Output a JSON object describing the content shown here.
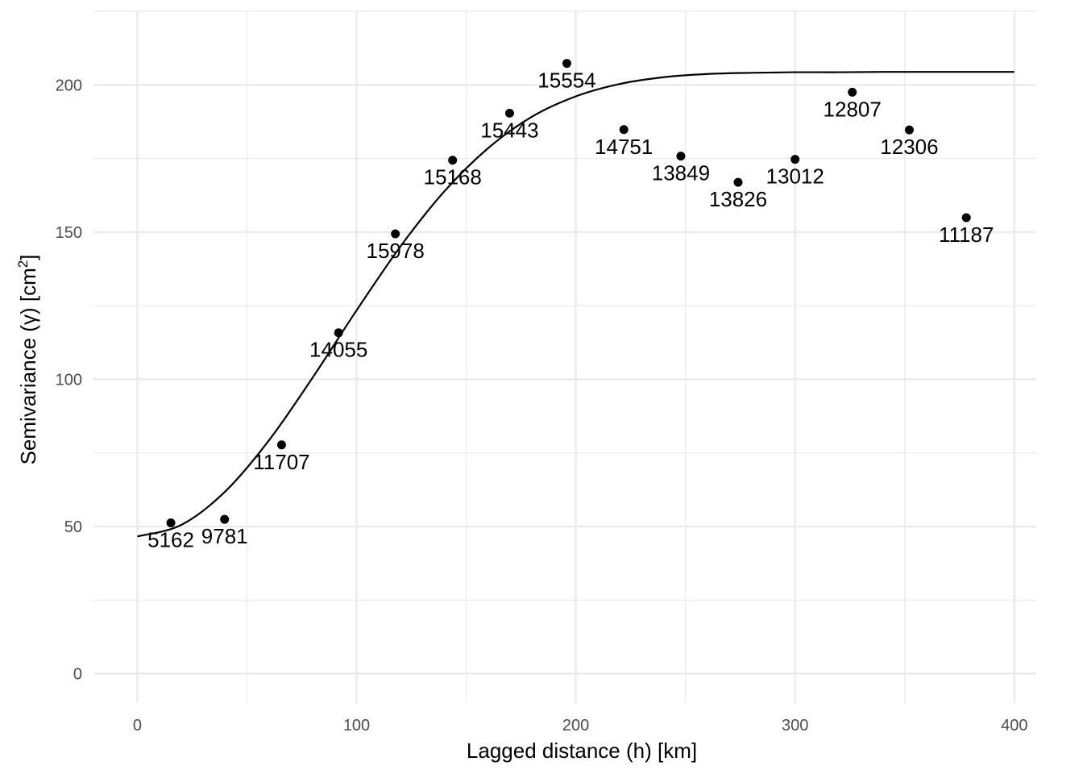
{
  "chart_data": {
    "type": "scatter",
    "xlabel": "Lagged distance (h) [km]",
    "ylabel": "Semivariance (γ) [cm²]",
    "ylabel_parts": {
      "main": "Semivariance (γ) [cm",
      "superscript": "2",
      "close": "]"
    },
    "xlim": [
      -20,
      410
    ],
    "ylim": [
      -10,
      225
    ],
    "x_ticks": [
      0,
      100,
      200,
      300,
      400
    ],
    "x_tick_labels": [
      "0",
      "100",
      "200",
      "300",
      "400"
    ],
    "y_ticks": [
      0,
      50,
      100,
      150,
      200
    ],
    "y_tick_labels": [
      "0",
      "50",
      "100",
      "150",
      "200"
    ],
    "grid": true,
    "legend": "none",
    "points": [
      {
        "x": 15.3,
        "y": 51.2,
        "label": "5162"
      },
      {
        "x": 39.8,
        "y": 52.4,
        "label": "9781"
      },
      {
        "x": 65.8,
        "y": 77.7,
        "label": "11707"
      },
      {
        "x": 91.8,
        "y": 115.8,
        "label": "14055"
      },
      {
        "x": 117.7,
        "y": 149.4,
        "label": "15978"
      },
      {
        "x": 143.8,
        "y": 174.4,
        "label": "15168"
      },
      {
        "x": 169.8,
        "y": 190.4,
        "label": "15443"
      },
      {
        "x": 195.9,
        "y": 207.3,
        "label": "15554"
      },
      {
        "x": 221.9,
        "y": 184.8,
        "label": "14751"
      },
      {
        "x": 247.9,
        "y": 175.8,
        "label": "13849"
      },
      {
        "x": 274.0,
        "y": 166.9,
        "label": "13826"
      },
      {
        "x": 300.0,
        "y": 174.7,
        "label": "13012"
      },
      {
        "x": 326.1,
        "y": 197.5,
        "label": "12807"
      },
      {
        "x": 352.1,
        "y": 184.7,
        "label": "12306"
      },
      {
        "x": 378.1,
        "y": 154.9,
        "label": "11187"
      }
    ],
    "fitted_model": {
      "type": "line",
      "x": [
        0,
        20,
        40,
        60,
        80,
        100,
        120,
        140,
        160,
        180,
        200,
        220,
        240,
        260,
        280,
        300,
        320,
        340,
        360,
        380,
        400
      ],
      "y": [
        46.6,
        50.5,
        61.8,
        79.2,
        100.6,
        123.4,
        145.1,
        163.8,
        178.5,
        189.2,
        196.1,
        200.3,
        202.6,
        203.7,
        204.1,
        204.3,
        204.3,
        204.4,
        204.4,
        204.4,
        204.4
      ]
    }
  }
}
